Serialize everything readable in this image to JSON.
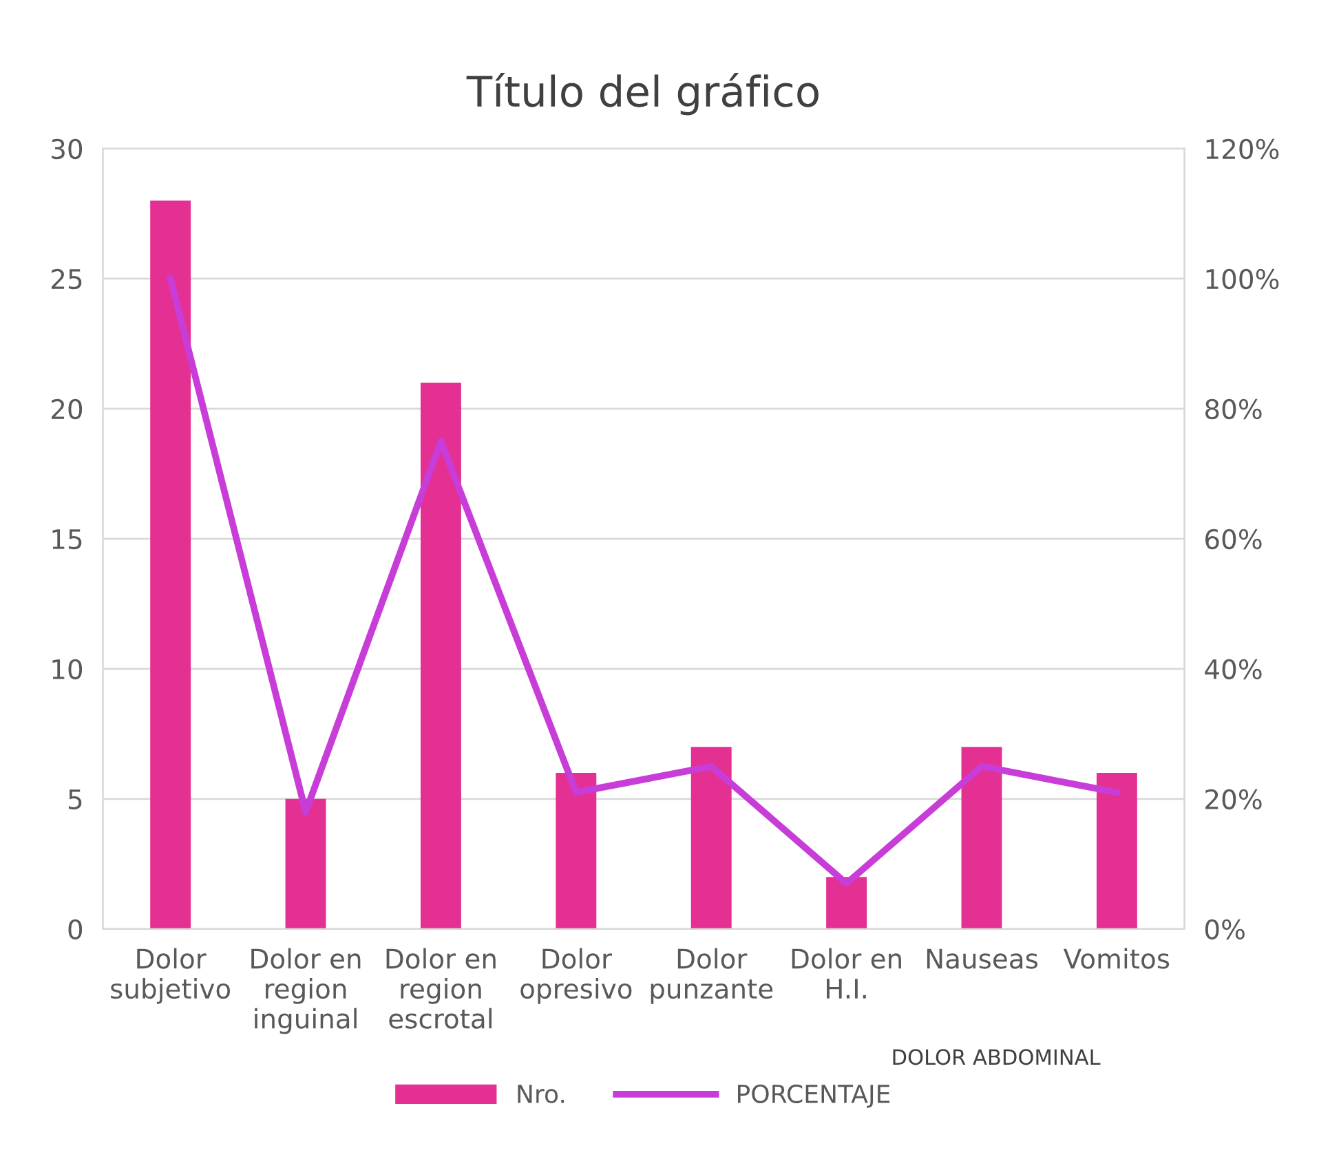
{
  "chart_data": {
    "type": "bar",
    "title": "Título del gráfico",
    "categories": [
      "Dolor\nsubjetivo",
      "Dolor en\nregion\ninguinal",
      "Dolor en\nregion\nescrotal",
      "Dolor\nopresivo",
      "Dolor\npunzante",
      "Dolor en\nH.I.",
      "Nauseas",
      "Vomitos"
    ],
    "series": [
      {
        "name": "Nro.",
        "color": "#e43093",
        "values": [
          28,
          5,
          21,
          6,
          7,
          2,
          7,
          6
        ]
      },
      {
        "name": "PORCENTAJE",
        "type": "line",
        "axis": "y2",
        "color": "#c83cd8",
        "values": [
          100,
          18,
          75,
          21,
          25,
          7,
          25,
          21
        ]
      }
    ],
    "ylim": [
      0,
      30
    ],
    "yticks": [
      0,
      5,
      10,
      15,
      20,
      25,
      30
    ],
    "y2lim": [
      0,
      120
    ],
    "y2ticks": [
      {
        "value": 0,
        "label": "0%"
      },
      {
        "value": 20,
        "label": "20%"
      },
      {
        "value": 40,
        "label": "40%"
      },
      {
        "value": 60,
        "label": "60%"
      },
      {
        "value": 80,
        "label": "80%"
      },
      {
        "value": 100,
        "label": "100%"
      },
      {
        "value": 120,
        "label": "120%"
      }
    ],
    "annotations": [
      "DOLOR ABDOMINAL"
    ],
    "grid": "y",
    "legend": "bottom",
    "marker": "none",
    "line_style": "solid"
  }
}
